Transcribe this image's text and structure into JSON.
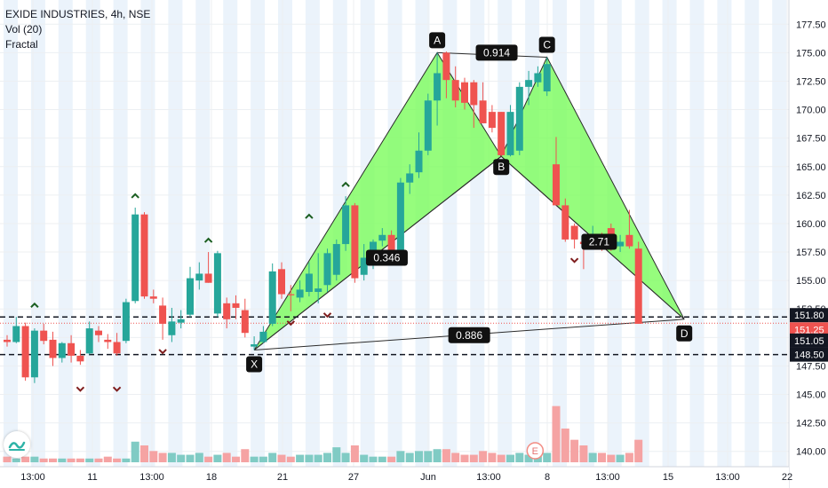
{
  "header": {
    "symbol_line": "EXIDE INDUSTRIES, 4h, NSE",
    "indicator_1": "Vol (20)",
    "indicator_2": "Fractal"
  },
  "colors": {
    "up": "#26a69a",
    "down": "#ef5350",
    "pattern_fill": "#7cfc5c",
    "vol_up": "#80cbc4",
    "vol_down": "#f5a3a3",
    "session_band": "#dbe9f8"
  },
  "chart_data": {
    "type": "candlestick",
    "title": "EXIDE INDUSTRIES, 4h, NSE",
    "ylim": [
      138.5,
      179
    ],
    "y_ticks": [
      140.0,
      142.5,
      145.0,
      147.5,
      150.0,
      152.5,
      155.0,
      157.5,
      160.0,
      162.5,
      165.0,
      167.5,
      170.0,
      172.5,
      175.0,
      177.5
    ],
    "x_labels": [
      "13:00",
      "11",
      "13:00",
      "18",
      "21",
      "27",
      "Jun",
      "13:00",
      "8",
      "13:00",
      "15",
      "13:00",
      "22"
    ],
    "candles": [
      [
        149.8,
        150.2,
        149.2,
        149.6
      ],
      [
        149.6,
        151.8,
        149.5,
        151.0
      ],
      [
        151.0,
        151.3,
        146.2,
        146.5
      ],
      [
        146.5,
        150.8,
        146.0,
        150.6
      ],
      [
        150.6,
        151.2,
        149.4,
        149.7
      ],
      [
        149.8,
        150.5,
        147.5,
        148.2
      ],
      [
        148.2,
        149.6,
        147.8,
        149.5
      ],
      [
        149.5,
        150.2,
        147.8,
        148.4
      ],
      [
        148.4,
        148.9,
        147.6,
        147.9
      ],
      [
        148.6,
        151.4,
        148.5,
        150.8
      ],
      [
        150.6,
        151.0,
        149.6,
        150.2
      ],
      [
        149.8,
        150.3,
        149.0,
        149.6
      ],
      [
        149.6,
        150.4,
        148.4,
        148.6
      ],
      [
        149.7,
        153.4,
        149.5,
        153.1
      ],
      [
        153.2,
        161.4,
        153.0,
        160.8
      ],
      [
        160.8,
        161.0,
        153.4,
        153.6
      ],
      [
        153.6,
        154.2,
        153.0,
        153.4
      ],
      [
        152.8,
        153.5,
        149.8,
        151.2
      ],
      [
        150.2,
        152.6,
        149.6,
        151.4
      ],
      [
        151.3,
        152.4,
        150.8,
        151.6
      ],
      [
        152.0,
        156.2,
        151.8,
        155.2
      ],
      [
        155.0,
        156.6,
        154.2,
        155.6
      ],
      [
        155.6,
        157.5,
        154.8,
        154.8
      ],
      [
        152.1,
        157.6,
        151.8,
        157.4
      ],
      [
        153.0,
        153.5,
        150.8,
        151.6
      ],
      [
        153.0,
        153.7,
        151.6,
        152.6
      ],
      [
        152.4,
        153.4,
        150.0,
        150.4
      ],
      [
        149.2,
        150.1,
        148.9,
        149.4
      ],
      [
        149.6,
        151.0,
        149.5,
        150.5
      ],
      [
        151.2,
        156.5,
        151.0,
        155.8
      ],
      [
        156.0,
        156.6,
        153.4,
        153.8
      ],
      [
        153.8,
        154.6,
        152.3,
        153.7
      ],
      [
        153.5,
        155.0,
        153.1,
        154.2
      ],
      [
        154.0,
        156.6,
        153.6,
        155.6
      ],
      [
        154.0,
        157.4,
        153.0,
        154.3
      ],
      [
        154.6,
        157.8,
        154.0,
        157.4
      ],
      [
        155.5,
        158.6,
        155.0,
        158.2
      ],
      [
        158.2,
        162.4,
        157.6,
        161.6
      ],
      [
        161.6,
        161.8,
        154.8,
        155.2
      ],
      [
        155.5,
        158.2,
        155.0,
        157.0
      ],
      [
        156.8,
        158.6,
        156.0,
        158.4
      ],
      [
        158.5,
        159.6,
        158.0,
        159.0
      ],
      [
        159.0,
        159.4,
        157.2,
        157.2
      ],
      [
        157.0,
        164.0,
        156.8,
        163.6
      ],
      [
        163.6,
        165.2,
        162.6,
        164.4
      ],
      [
        164.5,
        168.0,
        164.0,
        166.4
      ],
      [
        166.4,
        171.4,
        166.0,
        170.8
      ],
      [
        170.8,
        175.0,
        168.6,
        173.2
      ],
      [
        175.0,
        175.1,
        171.0,
        172.6
      ],
      [
        172.6,
        173.8,
        170.2,
        170.8
      ],
      [
        172.4,
        172.8,
        170.0,
        170.6
      ],
      [
        172.4,
        172.6,
        168.4,
        170.4
      ],
      [
        170.8,
        172.4,
        169.0,
        168.8
      ],
      [
        169.8,
        170.4,
        168.0,
        168.4
      ],
      [
        169.8,
        169.8,
        165.9,
        166.0
      ],
      [
        166.0,
        170.4,
        165.9,
        169.8
      ],
      [
        166.4,
        172.4,
        166.0,
        172.0
      ],
      [
        172.0,
        173.4,
        170.4,
        172.6
      ],
      [
        172.4,
        173.8,
        172.0,
        173.2
      ],
      [
        171.6,
        174.6,
        171.2,
        174.0
      ],
      [
        165.2,
        167.6,
        161.6,
        161.6
      ],
      [
        161.6,
        162.2,
        158.4,
        158.6
      ],
      [
        159.8,
        160.0,
        157.8,
        158.6
      ],
      [
        158.4,
        158.6,
        156.0,
        158.2
      ],
      [
        158.2,
        159.8,
        157.8,
        158.4
      ],
      [
        158.4,
        159.2,
        157.6,
        158.0
      ],
      [
        159.6,
        160.0,
        157.6,
        158.6
      ],
      [
        158.0,
        159.0,
        157.5,
        158.4
      ],
      [
        159.0,
        161.2,
        157.8,
        158.0
      ],
      [
        157.8,
        158.4,
        151.2,
        151.2
      ]
    ],
    "volume_ylim": [
      0,
      45
    ],
    "volumes": [
      3,
      2,
      3,
      3,
      2,
      2,
      2,
      2,
      2,
      2,
      2,
      3,
      2,
      2,
      11,
      9,
      6,
      5,
      5,
      4,
      4,
      5,
      3,
      4,
      5,
      3,
      7,
      3,
      3,
      5,
      4,
      3,
      4,
      4,
      4,
      5,
      8,
      5,
      9,
      4,
      3,
      3,
      3,
      6,
      5,
      6,
      6,
      7,
      7,
      5,
      4,
      4,
      6,
      5,
      4,
      4,
      5,
      4,
      4,
      5,
      30,
      18,
      12,
      9,
      5,
      5,
      4,
      4,
      5,
      12
    ],
    "harmonic_pattern": {
      "points": [
        {
          "label": "X",
          "index": 27,
          "price": 148.9
        },
        {
          "label": "A",
          "index": 47,
          "price": 175.0
        },
        {
          "label": "B",
          "index": 54,
          "price": 165.9
        },
        {
          "label": "C",
          "index": 59,
          "price": 174.6
        },
        {
          "label": "D",
          "index": 74,
          "price": 151.6
        }
      ],
      "ratios": [
        {
          "text": "0.346",
          "price": 157.0,
          "index": 41.5
        },
        {
          "text": "0.914",
          "price": 175.0,
          "index": 53.5
        },
        {
          "text": "2.71",
          "price": 158.4,
          "index": 64.7
        },
        {
          "text": "0.886",
          "price": 150.2,
          "index": 50.5
        }
      ]
    },
    "fractals_up": [
      {
        "index": 3,
        "price": 151.8
      },
      {
        "index": 14,
        "price": 161.4
      },
      {
        "index": 22,
        "price": 157.5
      },
      {
        "index": 33,
        "price": 159.6
      },
      {
        "index": 37,
        "price": 162.4
      },
      {
        "index": 47,
        "price": 175.5
      },
      {
        "index": 59,
        "price": 174.6
      }
    ],
    "fractals_down": [
      {
        "index": 8,
        "price": 146.5
      },
      {
        "index": 12,
        "price": 146.5
      },
      {
        "index": 17,
        "price": 149.8
      },
      {
        "index": 27,
        "price": 148.9
      },
      {
        "index": 31,
        "price": 152.3
      },
      {
        "index": 35,
        "price": 153.0
      },
      {
        "index": 54,
        "price": 165.9
      },
      {
        "index": 62,
        "price": 157.8
      }
    ],
    "horizontal_lines": [
      151.8,
      148.5
    ],
    "price_labels": [
      {
        "text": "151.80",
        "price": 151.8,
        "color": "#131722"
      },
      {
        "text": "151.25",
        "price": 151.25,
        "color": "#ef5350"
      },
      {
        "text": "151.05",
        "price": 151.05,
        "color": "#131722"
      },
      {
        "text": "148.50",
        "price": 148.5,
        "color": "#131722"
      }
    ],
    "event_marker": "E"
  }
}
